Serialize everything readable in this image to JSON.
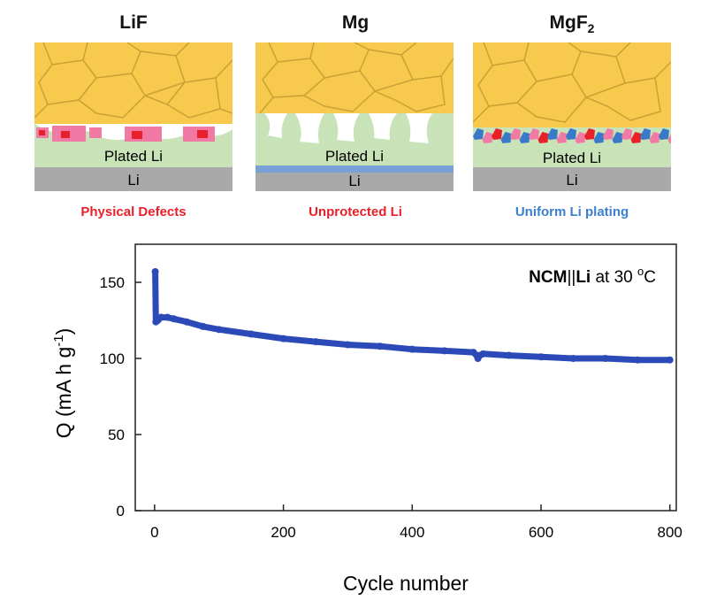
{
  "panels": [
    {
      "title": "LiF",
      "layer_label": "Plated Li",
      "base_label": "Li",
      "caption": "Physical Defects",
      "caption_color": "#e8202a"
    },
    {
      "title": "Mg",
      "layer_label": "Plated Li",
      "base_label": "Li",
      "caption": "Unprotected Li",
      "caption_color": "#e8202a"
    },
    {
      "title_main": "MgF",
      "title_sub": "2",
      "layer_label": "Plated Li",
      "base_label": "Li",
      "caption": "Uniform Li plating",
      "caption_color": "#3b7fd0"
    }
  ],
  "colors": {
    "grain_fill": "#f7c94c",
    "grain_line": "#c9a235",
    "plated_li": "#c9e3b8",
    "base_li": "#a9a9a9",
    "lif_particle": "#f07aa3",
    "lif_particle_dark": "#e8202a",
    "mgf2_particle": "#3a78c8",
    "mg_layer": "#7aa0d8",
    "series": "#2b4ab8"
  },
  "chart_data": {
    "type": "scatter",
    "annotation_bold_1": "NCM",
    "annotation_sep": "||",
    "annotation_bold_2": "Li",
    "annotation_rest": " at 30 ",
    "annotation_sup": "o",
    "annotation_unit": "C",
    "xlabel": "Cycle number",
    "ylabel_main": "Q (mA h g",
    "ylabel_sup": "-1",
    "ylabel_end": ")",
    "xlim": [
      -30,
      810
    ],
    "ylim": [
      0,
      175
    ],
    "xticks": [
      0,
      200,
      400,
      600,
      800
    ],
    "yticks": [
      0,
      50,
      100,
      150
    ],
    "series": [
      {
        "x": [
          1,
          2,
          5,
          10,
          20,
          30,
          50,
          75,
          100,
          150,
          200,
          250,
          300,
          350,
          400,
          450,
          495,
          500,
          502,
          505,
          510,
          550,
          600,
          650,
          700,
          750,
          800
        ],
        "values": [
          157,
          124,
          125,
          127,
          127,
          126,
          124,
          121,
          119,
          116,
          113,
          111,
          109,
          108,
          106,
          105,
          104,
          102,
          100,
          102,
          103,
          102,
          101,
          100,
          100,
          99,
          99
        ]
      }
    ]
  }
}
